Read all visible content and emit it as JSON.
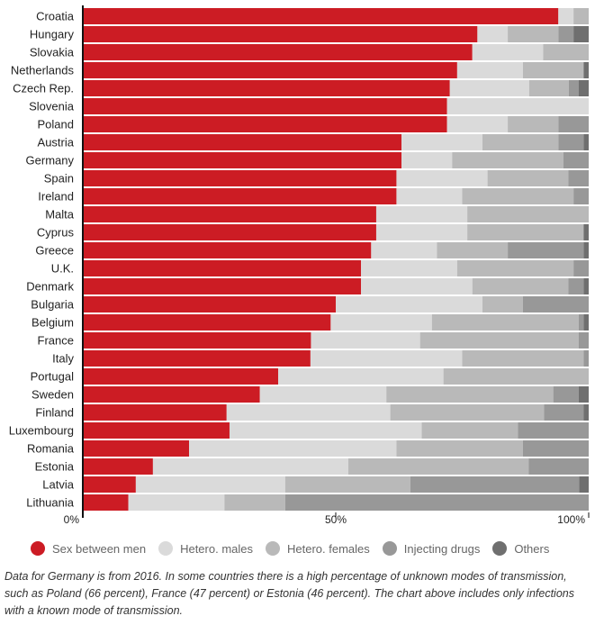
{
  "chart_data": {
    "type": "bar",
    "orientation": "horizontal",
    "stacked": true,
    "categories": [
      "Croatia",
      "Hungary",
      "Slovakia",
      "Netherlands",
      "Czech Rep.",
      "Slovenia",
      "Poland",
      "Austria",
      "Germany",
      "Spain",
      "Ireland",
      "Malta",
      "Cyprus",
      "Greece",
      "U.K.",
      "Denmark",
      "Bulgaria",
      "Belgium",
      "France",
      "Italy",
      "Portugal",
      "Sweden",
      "Finland",
      "Luxembourg",
      "Romania",
      "Estonia",
      "Latvia",
      "Lithuania"
    ],
    "series": [
      {
        "name": "Sex between men",
        "color": "#cc1c24",
        "values": [
          94,
          78,
          77,
          74,
          74,
          72,
          72,
          63,
          63,
          62,
          62,
          58,
          58,
          57,
          55,
          55,
          50,
          49,
          46,
          45,
          39,
          35,
          29,
          29,
          21,
          14,
          11,
          9
        ]
      },
      {
        "name": "Hetero. males",
        "color": "#dadada",
        "values": [
          3,
          6,
          14,
          13,
          16,
          28,
          12,
          16,
          10,
          18,
          13,
          18,
          18,
          13,
          19,
          22,
          29,
          20,
          22,
          30,
          33,
          25,
          33,
          38,
          41,
          39,
          31,
          19
        ]
      },
      {
        "name": "Hetero. females",
        "color": "#b9b9b9",
        "values": [
          3,
          10,
          9,
          12,
          8,
          0,
          10,
          15,
          22,
          16,
          22,
          24,
          23,
          14,
          23,
          19,
          8,
          29,
          32,
          24,
          29,
          33,
          31,
          19,
          25,
          36,
          26,
          12
        ]
      },
      {
        "name": "Injecting drugs",
        "color": "#989898",
        "values": [
          0,
          3,
          0,
          0,
          2,
          0,
          6,
          5,
          5,
          4,
          3,
          0,
          0,
          15,
          3,
          3,
          13,
          1,
          2,
          1,
          0,
          5,
          8,
          14,
          13,
          12,
          35,
          60
        ]
      },
      {
        "name": "Others",
        "color": "#6f6f6f",
        "values": [
          0,
          3,
          0,
          1,
          2,
          0,
          0,
          1,
          0,
          0,
          0,
          0,
          1,
          1,
          0,
          1,
          0,
          1,
          0,
          0,
          0,
          2,
          1,
          0,
          0,
          0,
          2,
          0
        ]
      }
    ],
    "xlim": [
      0,
      100
    ],
    "xticks": [
      "0%",
      "50%",
      "100%"
    ],
    "legend_position": "bottom",
    "grid": false
  },
  "note": "Data for Germany is from 2016. In some countries there is a high percentage of unknown modes of transmission, such as Poland (66 percent), France (47 percent) or Estonia (46 percent). The chart above includes only infections with a known mode of transmission."
}
